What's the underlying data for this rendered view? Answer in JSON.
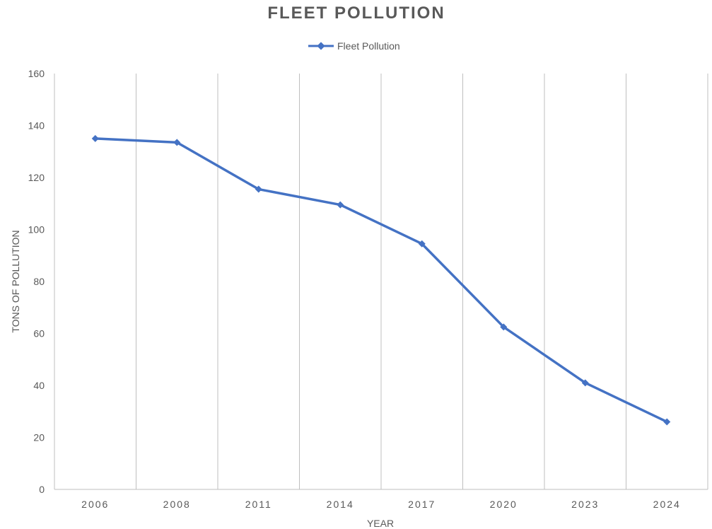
{
  "chart_data": {
    "type": "line",
    "title": "FLEET POLLUTION",
    "xlabel": "YEAR",
    "ylabel": "TONS OF POLLUTION",
    "categories": [
      "2006",
      "2008",
      "2011",
      "2014",
      "2017",
      "2020",
      "2023",
      "2024"
    ],
    "series": [
      {
        "name": "Fleet Pollution",
        "values": [
          135,
          133.5,
          115.5,
          109.5,
          94.5,
          62.5,
          41,
          26
        ]
      }
    ],
    "ylim": [
      0,
      160
    ],
    "yticks": [
      "0",
      "20",
      "40",
      "60",
      "80",
      "100",
      "120",
      "140",
      "160"
    ],
    "grid": "vertical",
    "legend_position": "top-center",
    "colors": {
      "series": "#4472C4",
      "grid": "#bfbfbf",
      "text": "#595959"
    }
  }
}
